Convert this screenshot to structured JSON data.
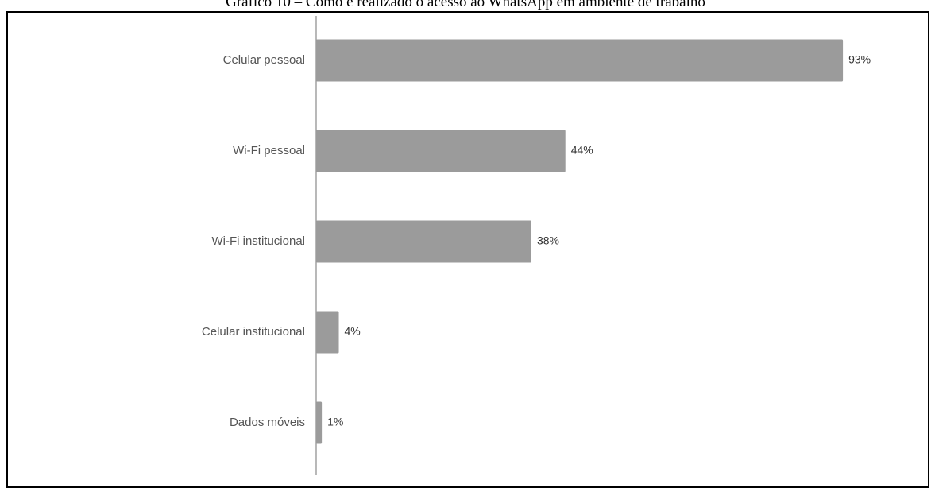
{
  "caption": "Gráfico 10 – Como é realizado o acesso ao WhatsApp em ambiente de trabalho",
  "chart_data": {
    "type": "bar",
    "orientation": "horizontal",
    "categories": [
      "Celular pessoal",
      "Wi-Fi pessoal",
      "Wi-Fi institucional",
      "Celular institucional",
      "Dados móveis"
    ],
    "values": [
      93,
      44,
      38,
      4,
      1
    ],
    "value_labels": [
      "93%",
      "44%",
      "38%",
      "4%",
      "1%"
    ],
    "xlim": [
      0,
      100
    ],
    "unit": "%",
    "grid": false,
    "legend": "none",
    "bar_color": "#9b9b9b",
    "axis_color": "#8a8a8a"
  }
}
